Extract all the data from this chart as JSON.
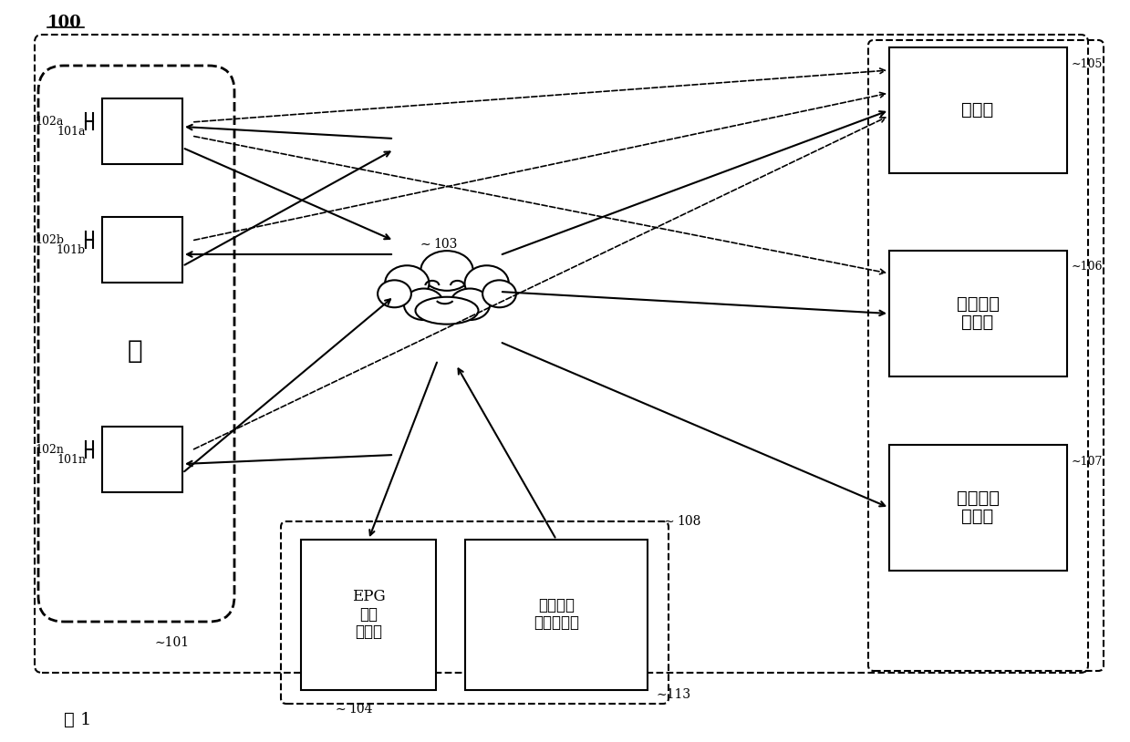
{
  "bg_color": "#ffffff",
  "fig_label": "图 1",
  "label_100": "100",
  "label_101": "101",
  "label_103": "103",
  "label_104": "104",
  "label_105": "105",
  "label_106": "106",
  "label_107": "107",
  "label_108": "108",
  "label_113": "113",
  "label_102a": "102a",
  "label_101a": "101a",
  "label_102b": "102b",
  "label_101b": "101b",
  "label_102n": "102n",
  "label_101n": "101n",
  "box_105_text": "广播站",
  "box_106_text": "目录服务\n服务器",
  "box_107_text": "内容服务\n服务器",
  "box_epg_text": "EPG\n服务\n服务器",
  "box_user_text": "用户信息\n管理服务器"
}
